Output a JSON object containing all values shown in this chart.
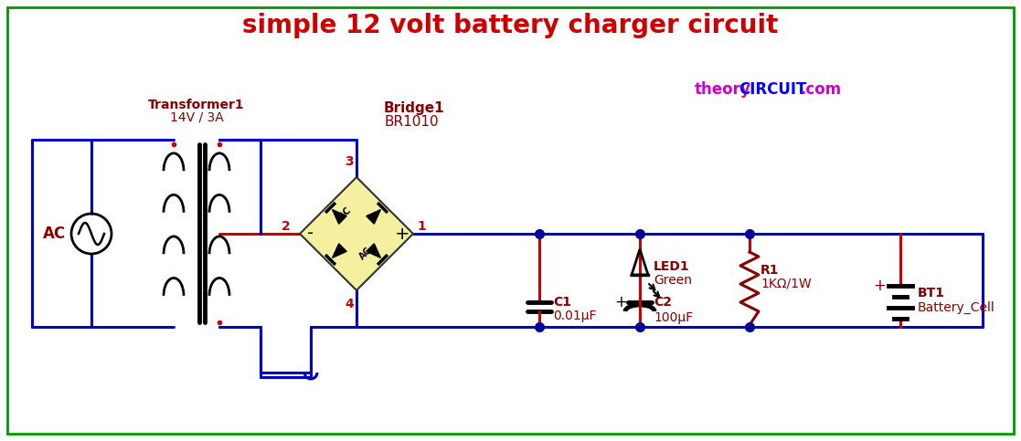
{
  "title": "simple 12 volt battery charger circuit",
  "title_color": "#cc0000",
  "title_fontsize": 20,
  "bg_color": "#ffffff",
  "border_color": "#009900",
  "wire_color": "#0000cc",
  "red_wire_color": "#cc0000",
  "component_color": "#880000",
  "label_color": "#880000",
  "transformer_label1": "Transformer1",
  "transformer_label2": "14V / 3A",
  "bridge_label1": "Bridge1",
  "bridge_label2": "BR1010",
  "c1_label1": "C1",
  "c1_label2": "0.01μF",
  "c2_label1": "C2",
  "c2_label2": "100μF",
  "r1_label1": "R1",
  "r1_label2": "1KΩ/1W",
  "led_label1": "LED1",
  "led_label2": "Green",
  "bt1_label1": "BT1",
  "bt1_label2": "Battery_Cell",
  "ac_label": "AC",
  "pin3": "3",
  "pin4": "4",
  "pin2": "2",
  "pin1": "1"
}
